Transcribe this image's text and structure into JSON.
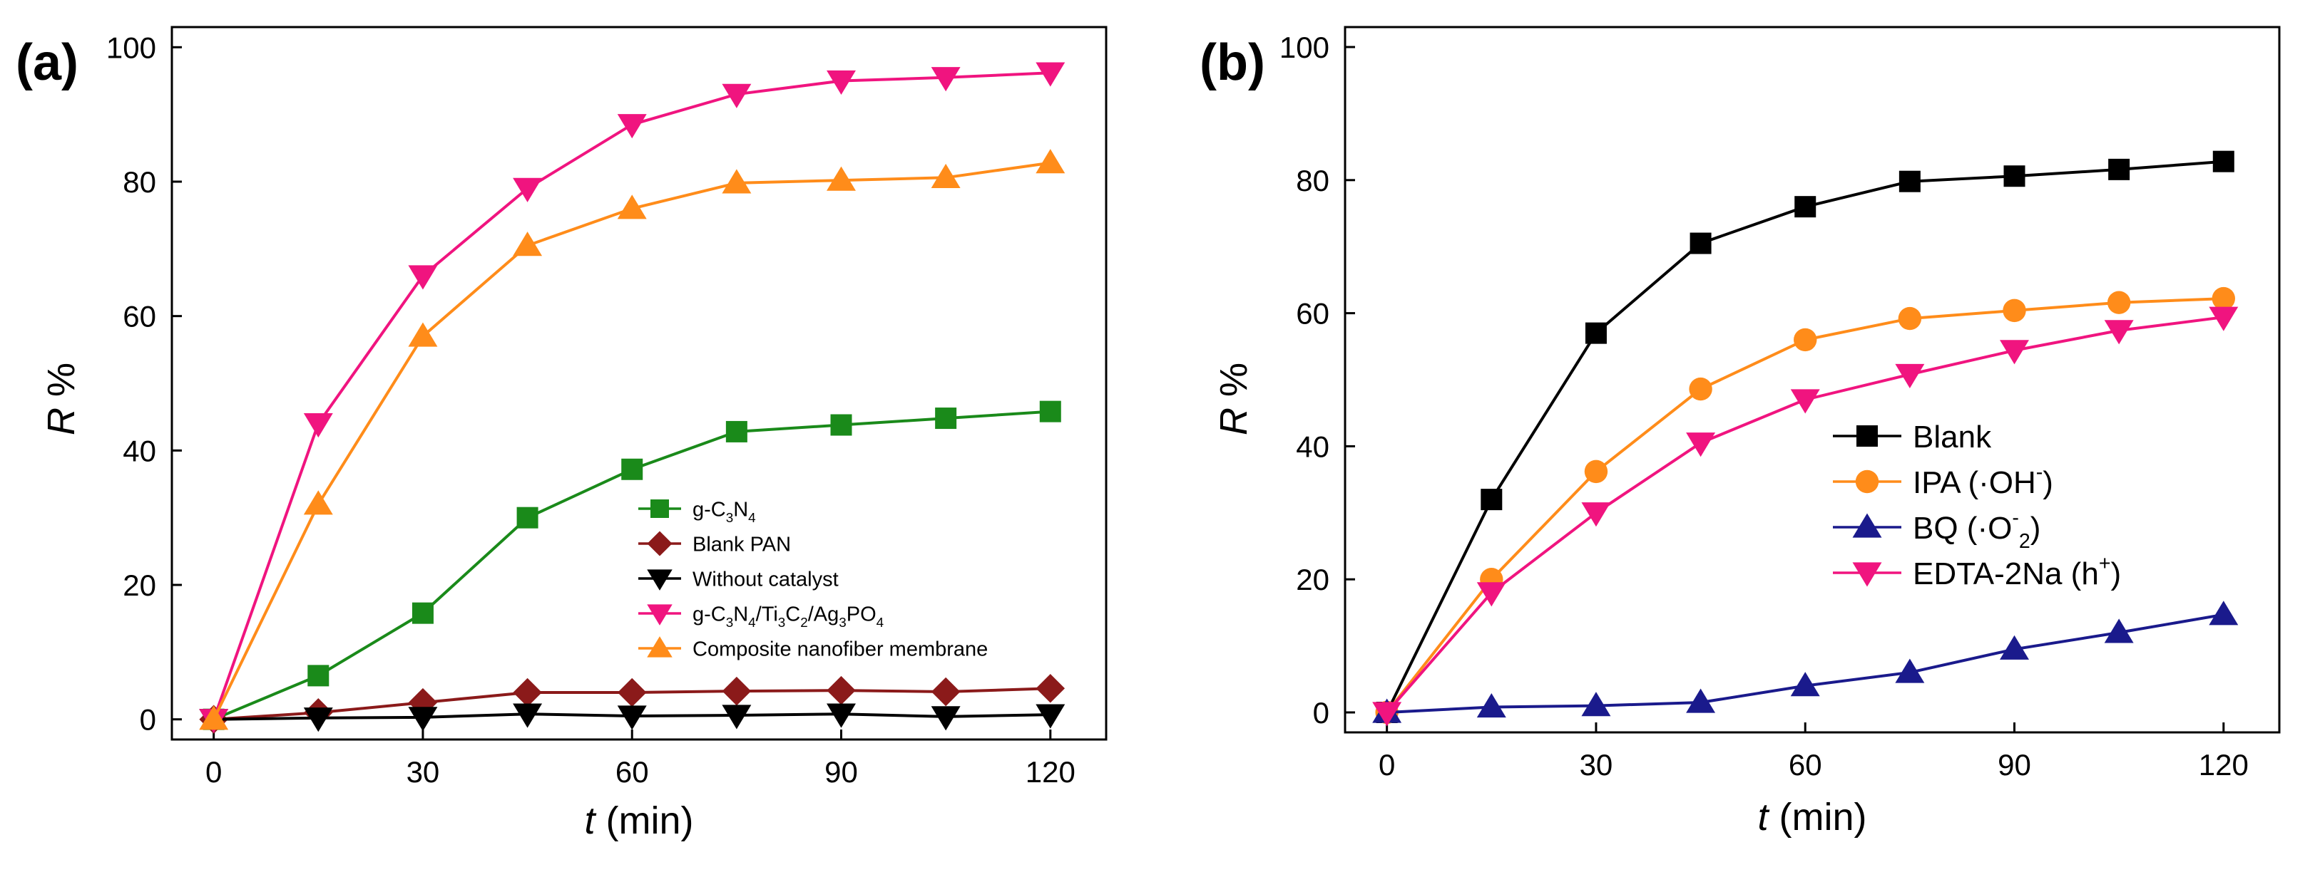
{
  "chart_data": [
    {
      "panel_label": "(a)",
      "type": "line",
      "xlabel": "t (min)",
      "ylabel": "R %",
      "xlabel_var": "t",
      "xlabel_unit": " (min)",
      "ylabel_var": "R",
      "ylabel_unit": " %",
      "xlim": [
        -6,
        128
      ],
      "ylim": [
        -3,
        103
      ],
      "xticks": [
        0,
        30,
        60,
        90,
        120
      ],
      "yticks": [
        0,
        20,
        40,
        60,
        80,
        100
      ],
      "x": [
        0,
        15,
        30,
        45,
        60,
        75,
        90,
        105,
        120
      ],
      "grid": false,
      "legend_position": "center-right",
      "series": [
        {
          "name": "g-C3N4",
          "label_parts": [
            [
              "g-C",
              ""
            ],
            [
              "3",
              "sub"
            ],
            [
              "N",
              ""
            ],
            [
              "4",
              "sub"
            ]
          ],
          "color": "#1a8a1a",
          "marker": "square",
          "values": [
            0,
            6.5,
            15.8,
            30,
            37.2,
            42.8,
            43.8,
            44.8,
            45.8
          ]
        },
        {
          "name": "Blank PAN",
          "label_parts": [
            [
              "Blank PAN",
              ""
            ]
          ],
          "color": "#8b1a1a",
          "marker": "diamond",
          "values": [
            0,
            1,
            2.5,
            4,
            4,
            4.2,
            4.3,
            4.1,
            4.6
          ]
        },
        {
          "name": "Without catalyst",
          "label_parts": [
            [
              "Without catalyst",
              ""
            ]
          ],
          "color": "#000000",
          "marker": "triangle-down",
          "values": [
            0,
            0.2,
            0.3,
            0.8,
            0.5,
            0.6,
            0.8,
            0.4,
            0.7
          ]
        },
        {
          "name": "g-C3N4/Ti3C2/Ag3PO4",
          "label_parts": [
            [
              "g-C",
              ""
            ],
            [
              "3",
              "sub"
            ],
            [
              "N",
              ""
            ],
            [
              "4",
              "sub"
            ],
            [
              "/Ti",
              ""
            ],
            [
              "3",
              "sub"
            ],
            [
              "C",
              ""
            ],
            [
              "2",
              "sub"
            ],
            [
              "/Ag",
              ""
            ],
            [
              "3",
              "sub"
            ],
            [
              "PO",
              ""
            ],
            [
              "4",
              "sub"
            ]
          ],
          "color": "#f0147f",
          "marker": "triangle-down",
          "values": [
            0,
            44,
            66,
            79,
            88.5,
            93,
            95,
            95.5,
            96.2
          ]
        },
        {
          "name": "Composite nanofiber membrane",
          "label_parts": [
            [
              "Composite nanofiber membrane",
              ""
            ]
          ],
          "color": "#ff8c1a",
          "marker": "triangle-up",
          "values": [
            0,
            32,
            57,
            70.5,
            76,
            79.8,
            80.2,
            80.6,
            82.8
          ]
        }
      ]
    },
    {
      "panel_label": "(b)",
      "type": "line",
      "xlabel": "t (min)",
      "ylabel": "R %",
      "xlabel_var": "t",
      "xlabel_unit": " (min)",
      "ylabel_var": "R",
      "ylabel_unit": " %",
      "xlim": [
        -6,
        128
      ],
      "ylim": [
        -3,
        103
      ],
      "xticks": [
        0,
        30,
        60,
        90,
        120
      ],
      "yticks": [
        0,
        20,
        40,
        60,
        80,
        100
      ],
      "x": [
        0,
        15,
        30,
        45,
        60,
        75,
        90,
        105,
        120
      ],
      "grid": false,
      "legend_position": "center-right",
      "series": [
        {
          "name": "Blank",
          "label_parts": [
            [
              "Blank",
              ""
            ]
          ],
          "color": "#000000",
          "marker": "square",
          "values": [
            0,
            32,
            57,
            70.5,
            76,
            79.8,
            80.6,
            81.6,
            82.8
          ]
        },
        {
          "name": "IPA (·OH-)",
          "label_parts": [
            [
              "IPA (·OH",
              ""
            ],
            [
              "-",
              "sup"
            ],
            [
              ")",
              ""
            ]
          ],
          "color": "#ff8c1a",
          "marker": "circle",
          "values": [
            0,
            20,
            36.2,
            48.6,
            56,
            59.2,
            60.4,
            61.6,
            62.2
          ]
        },
        {
          "name": "BQ (·O2-)",
          "label_parts": [
            [
              "BQ (·O",
              ""
            ],
            [
              "-",
              "sup"
            ],
            [
              "2",
              "sub"
            ],
            [
              ")",
              ""
            ]
          ],
          "color": "#1a1a8c",
          "marker": "triangle-up",
          "values": [
            0,
            0.8,
            1.0,
            1.5,
            4.0,
            6.0,
            9.5,
            12.0,
            14.7
          ]
        },
        {
          "name": "EDTA-2Na (h+)",
          "label_parts": [
            [
              "EDTA-2Na (h",
              ""
            ],
            [
              "+",
              "sup"
            ],
            [
              ")",
              ""
            ]
          ],
          "color": "#f0147f",
          "marker": "triangle-down",
          "values": [
            0,
            18,
            30,
            40.5,
            47,
            50.8,
            54.4,
            57.4,
            59.4
          ]
        }
      ]
    }
  ]
}
